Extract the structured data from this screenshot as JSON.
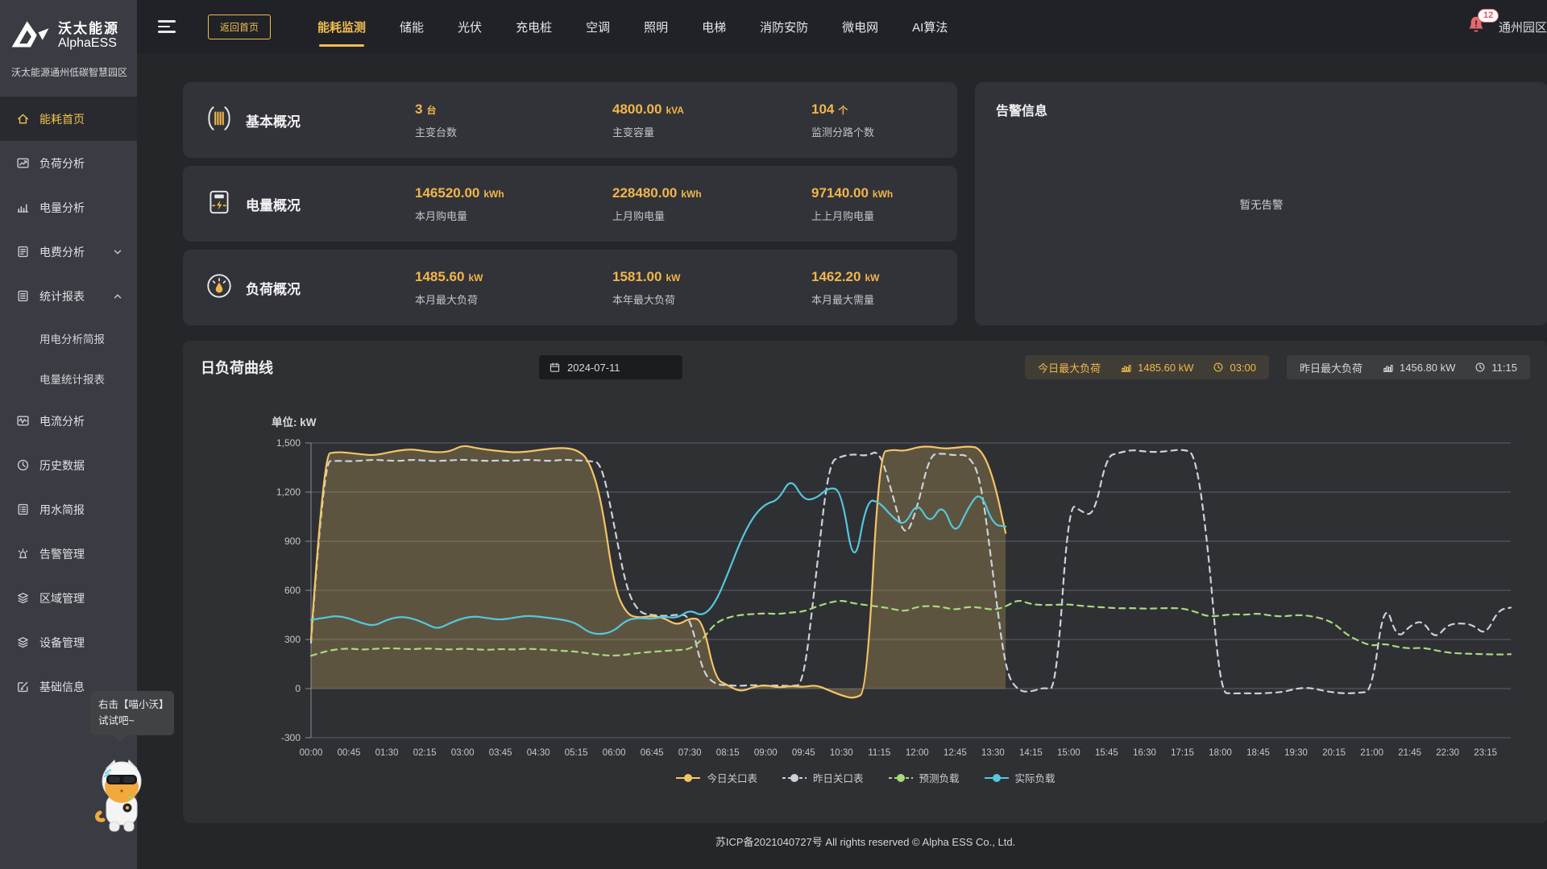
{
  "sidebar": {
    "brand_cn": "沃太能源",
    "brand_en": "AlphaESS",
    "subtitle": "沃太能源通州低碳智慧园区",
    "items": [
      {
        "label": "能耗首页"
      },
      {
        "label": "负荷分析"
      },
      {
        "label": "电量分析"
      },
      {
        "label": "电费分析"
      },
      {
        "label": "统计报表"
      },
      {
        "label": "用电分析简报"
      },
      {
        "label": "电量统计报表"
      },
      {
        "label": "电流分析"
      },
      {
        "label": "历史数据"
      },
      {
        "label": "用水简报"
      },
      {
        "label": "告警管理"
      },
      {
        "label": "区域管理"
      },
      {
        "label": "设备管理"
      },
      {
        "label": "基础信息"
      }
    ],
    "mascot_tooltip": {
      "line1": "右击【喵小沃】",
      "line2": "试试吧~"
    }
  },
  "topbar": {
    "back_button": "返回首页",
    "tabs": [
      {
        "label": "能耗监测"
      },
      {
        "label": "储能"
      },
      {
        "label": "光伏"
      },
      {
        "label": "充电桩"
      },
      {
        "label": "空调"
      },
      {
        "label": "照明"
      },
      {
        "label": "电梯"
      },
      {
        "label": "消防安防"
      },
      {
        "label": "微电网"
      },
      {
        "label": "AI算法"
      }
    ],
    "notification_count": "12",
    "org_name": "通州园区"
  },
  "overview": {
    "cards": [
      {
        "title": "基本概况",
        "metrics": [
          {
            "value": "3",
            "unit": "台",
            "label": "主变台数"
          },
          {
            "value": "4800.00",
            "unit": "kVA",
            "label": "主变容量"
          },
          {
            "value": "104",
            "unit": "个",
            "label": "监测分路个数"
          }
        ]
      },
      {
        "title": "电量概况",
        "metrics": [
          {
            "value": "146520.00",
            "unit": "kWh",
            "label": "本月购电量"
          },
          {
            "value": "228480.00",
            "unit": "kWh",
            "label": "上月购电量"
          },
          {
            "value": "97140.00",
            "unit": "kWh",
            "label": "上上月购电量"
          }
        ]
      },
      {
        "title": "负荷概况",
        "metrics": [
          {
            "value": "1485.60",
            "unit": "kW",
            "label": "本月最大负荷"
          },
          {
            "value": "1581.00",
            "unit": "kW",
            "label": "本年最大负荷"
          },
          {
            "value": "1462.20",
            "unit": "kW",
            "label": "本月最大需量"
          }
        ]
      }
    ],
    "alarm": {
      "title": "告警信息",
      "empty": "暂无告警"
    }
  },
  "load_curve": {
    "title": "日负荷曲线",
    "date": "2024-07-11",
    "badges": [
      {
        "label": "今日最大负荷",
        "value": "1485.60 kW",
        "time": "03:00"
      },
      {
        "label": "昨日最大负荷",
        "value": "1456.80 kW",
        "time": "11:15"
      }
    ]
  },
  "chart_data": {
    "type": "line",
    "unit_label": "单位: kW",
    "ylim": [
      -300,
      1500
    ],
    "grid": true,
    "legend_position": "bottom",
    "y_ticks": [
      {
        "value": 1500,
        "label": "1,500"
      },
      {
        "value": 1200,
        "label": "1,200"
      },
      {
        "value": 900,
        "label": "900"
      },
      {
        "value": 600,
        "label": "600"
      },
      {
        "value": 300,
        "label": "300"
      },
      {
        "value": 0,
        "label": "0"
      },
      {
        "value": -300,
        "label": "-300"
      }
    ],
    "x_tick_labels": [
      "00:00",
      "00:45",
      "01:30",
      "02:15",
      "03:00",
      "03:45",
      "04:30",
      "05:15",
      "06:00",
      "06:45",
      "07:30",
      "08:15",
      "09:00",
      "09:45",
      "10:30",
      "11:15",
      "12:00",
      "12:45",
      "13:30",
      "14:15",
      "15:00",
      "15:45",
      "16:30",
      "17:15",
      "18:00",
      "18:45",
      "19:30",
      "20:15",
      "21:00",
      "21:45",
      "22:30",
      "23:15"
    ],
    "x_tick_interval_minutes": 45,
    "x_step_minutes": 15,
    "x_total_minutes": 1425,
    "series": [
      {
        "name": "今日关口表",
        "color": "#f5c565",
        "dash": false,
        "fill": "rgba(203,168,93,0.30)",
        "start_minute": 0,
        "values": [
          300,
          1430,
          1445,
          1440,
          1430,
          1425,
          1440,
          1455,
          1462,
          1450,
          1442,
          1448,
          1486,
          1470,
          1458,
          1450,
          1442,
          1446,
          1456,
          1466,
          1470,
          1460,
          1400,
          1150,
          620,
          452,
          432,
          446,
          430,
          385,
          432,
          420,
          60,
          20,
          -20,
          10,
          22,
          6,
          16,
          10,
          22,
          -10,
          -42,
          -62,
          -20,
          1440,
          1460,
          1450,
          1475,
          1480,
          1465,
          1470,
          1480,
          1470,
          1300,
          950
        ]
      },
      {
        "name": "昨日关口表",
        "color": "#ccd1d9",
        "dash": true,
        "fill": null,
        "start_minute": 0,
        "values": [
          280,
          1385,
          1392,
          1388,
          1392,
          1398,
          1393,
          1390,
          1398,
          1393,
          1390,
          1394,
          1398,
          1394,
          1390,
          1394,
          1390,
          1398,
          1394,
          1390,
          1398,
          1394,
          1390,
          1380,
          1000,
          600,
          462,
          450,
          442,
          452,
          446,
          100,
          25,
          20,
          16,
          22,
          16,
          20,
          15,
          25,
          700,
          1380,
          1420,
          1432,
          1420,
          1457,
          1200,
          905,
          1100,
          1430,
          1436,
          1424,
          1430,
          1300,
          700,
          100,
          -15,
          -20,
          8,
          -12,
          1140,
          1080,
          1055,
          1420,
          1440,
          1458,
          1448,
          1444,
          1452,
          1460,
          1440,
          900,
          -25,
          -30,
          -28,
          -30,
          -26,
          -20,
          0,
          6,
          -10,
          -24,
          -30,
          -25,
          -18,
          550,
          300,
          382,
          420,
          300,
          390,
          400,
          390,
          325,
          480,
          495
        ]
      },
      {
        "name": "预测负载",
        "color": "#a7da7d",
        "dash": true,
        "fill": null,
        "start_minute": 0,
        "values": [
          200,
          225,
          240,
          245,
          238,
          242,
          248,
          244,
          240,
          246,
          242,
          238,
          244,
          240,
          236,
          242,
          238,
          244,
          240,
          236,
          230,
          226,
          215,
          205,
          200,
          208,
          218,
          225,
          230,
          235,
          240,
          300,
          400,
          435,
          450,
          455,
          460,
          455,
          465,
          470,
          500,
          525,
          540,
          520,
          510,
          500,
          488,
          470,
          500,
          505,
          498,
          480,
          500,
          495,
          480,
          500,
          545,
          515,
          510,
          512,
          515,
          505,
          500,
          495,
          490,
          492,
          488,
          490,
          492,
          490,
          470,
          440,
          445,
          455,
          450,
          460,
          445,
          440,
          450,
          445,
          430,
          400,
          330,
          290,
          260,
          275,
          255,
          245,
          250,
          235,
          220,
          215,
          212,
          210,
          208,
          210
        ]
      },
      {
        "name": "实际负载",
        "color": "#54c8dd",
        "dash": false,
        "fill": null,
        "start_minute": 0,
        "values": [
          420,
          432,
          445,
          430,
          400,
          382,
          420,
          440,
          430,
          400,
          362,
          400,
          430,
          442,
          430,
          420,
          432,
          445,
          440,
          430,
          420,
          400,
          342,
          330,
          352,
          420,
          432,
          425,
          440,
          430,
          482,
          440,
          520,
          700,
          900,
          1050,
          1130,
          1150,
          1290,
          1150,
          1160,
          1230,
          1210,
          715,
          1155,
          1140,
          1050,
          990,
          1145,
          1000,
          1135,
          930,
          1100,
          1210,
          1000,
          990
        ]
      }
    ]
  },
  "footer": {
    "text": "苏ICP备2021040727号 All rights reserved © Alpha ESS Co., Ltd."
  }
}
